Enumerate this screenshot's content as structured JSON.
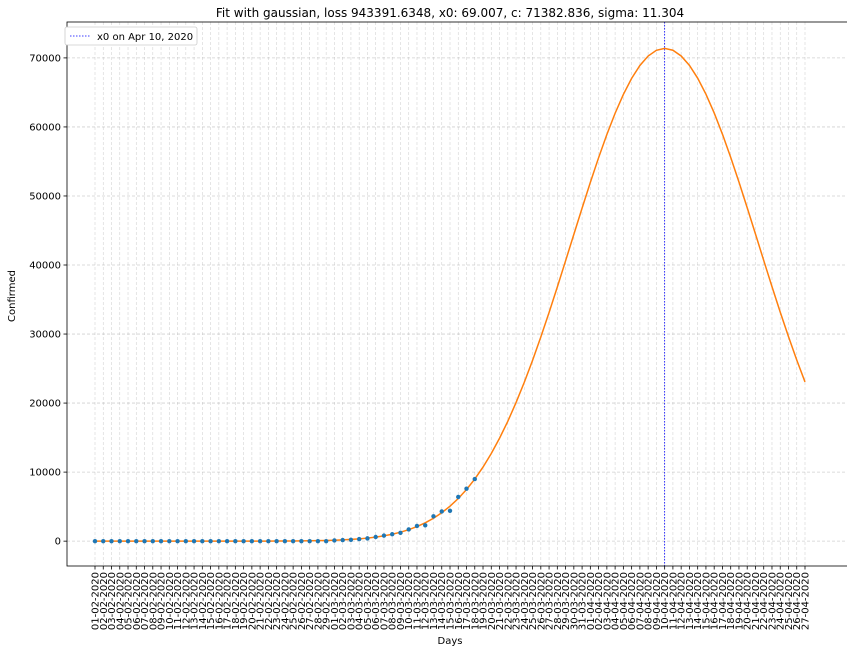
{
  "chart_data": {
    "type": "line",
    "title": "Fit with gaussian, loss 943391.6348, x0: 69.007, c: 71382.836, sigma: 11.304",
    "xlabel": "Days",
    "ylabel": "Confirmed",
    "x": [
      "01-02-2020",
      "02-02-2020",
      "03-02-2020",
      "04-02-2020",
      "05-02-2020",
      "06-02-2020",
      "07-02-2020",
      "08-02-2020",
      "09-02-2020",
      "10-02-2020",
      "11-02-2020",
      "12-02-2020",
      "13-02-2020",
      "14-02-2020",
      "15-02-2020",
      "16-02-2020",
      "17-02-2020",
      "18-02-2020",
      "19-02-2020",
      "20-02-2020",
      "21-02-2020",
      "22-02-2020",
      "23-02-2020",
      "24-02-2020",
      "25-02-2020",
      "26-02-2020",
      "27-02-2020",
      "28-02-2020",
      "29-02-2020",
      "01-03-2020",
      "02-03-2020",
      "03-03-2020",
      "04-03-2020",
      "05-03-2020",
      "06-03-2020",
      "07-03-2020",
      "08-03-2020",
      "09-03-2020",
      "10-03-2020",
      "11-03-2020",
      "12-03-2020",
      "13-03-2020",
      "14-03-2020",
      "15-03-2020",
      "16-03-2020",
      "17-03-2020",
      "18-03-2020",
      "19-03-2020",
      "20-03-2020",
      "21-03-2020",
      "22-03-2020",
      "23-03-2020",
      "24-03-2020",
      "25-03-2020",
      "26-03-2020",
      "27-03-2020",
      "28-03-2020",
      "29-03-2020",
      "30-03-2020",
      "31-03-2020",
      "01-04-2020",
      "02-04-2020",
      "03-04-2020",
      "04-04-2020",
      "05-04-2020",
      "06-04-2020",
      "07-04-2020",
      "08-04-2020",
      "09-04-2020",
      "10-04-2020",
      "11-04-2020",
      "12-04-2020",
      "13-04-2020",
      "14-04-2020",
      "15-04-2020",
      "16-04-2020",
      "17-04-2020",
      "18-04-2020",
      "19-04-2020",
      "20-04-2020",
      "21-04-2020",
      "22-04-2020",
      "23-04-2020",
      "24-04-2020",
      "25-04-2020",
      "26-04-2020",
      "27-04-2020"
    ],
    "ylim": [
      -3600,
      75200
    ],
    "yticks": [
      0,
      10000,
      20000,
      30000,
      40000,
      50000,
      60000,
      70000
    ],
    "grid": true,
    "legend_position": "top-left",
    "vline": {
      "x": "10-04-2020",
      "label": "x0 on Apr 10, 2020",
      "color": "#0000ff"
    },
    "series": [
      {
        "kind": "scatter",
        "color": "#1f77b4",
        "values": [
          0,
          0,
          0,
          0,
          0,
          0,
          0,
          0,
          0,
          0,
          0,
          0,
          0,
          0,
          0,
          0,
          0,
          0,
          0,
          0,
          0,
          0,
          0,
          0,
          0,
          0,
          0,
          0,
          0,
          100,
          150,
          200,
          300,
          400,
          600,
          800,
          1000,
          1200,
          1700,
          2200,
          2300,
          3600,
          4300,
          4400,
          6400,
          7600,
          9000
        ]
      },
      {
        "kind": "line",
        "color": "#ff7f0e",
        "fit": {
          "model": "gaussian",
          "x0": 69.007,
          "c": 71382.836,
          "sigma": 11.304
        }
      }
    ]
  }
}
